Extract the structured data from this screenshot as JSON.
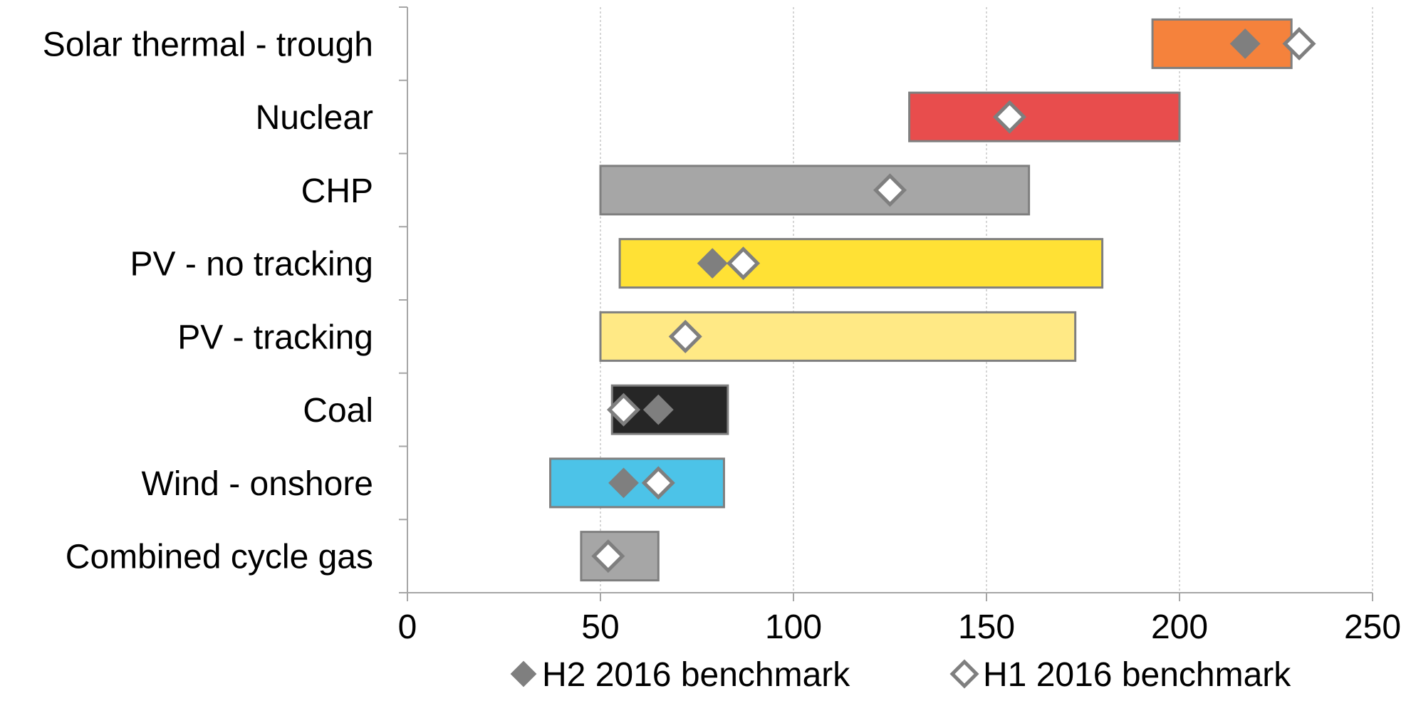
{
  "chart_data": {
    "type": "bar",
    "orientation": "horizontal-range",
    "title": "",
    "xlabel": "",
    "ylabel": "",
    "xlim": [
      0,
      250
    ],
    "x_ticks": [
      0,
      50,
      100,
      150,
      200,
      250
    ],
    "x_tick_labels": [
      "0",
      "50",
      "100",
      "150",
      "200",
      "250"
    ],
    "grid": "vertical dashed",
    "legend_position": "bottom",
    "categories": [
      "Solar thermal - trough",
      "Nuclear",
      "CHP",
      "PV - no tracking",
      "PV - tracking",
      "Coal",
      "Wind - onshore",
      "Combined cycle gas"
    ],
    "ranges": [
      {
        "category": "Solar thermal - trough",
        "low": 193,
        "high": 229,
        "color": "#F5823C"
      },
      {
        "category": "Nuclear",
        "low": 130,
        "high": 200,
        "color": "#E84D4D"
      },
      {
        "category": "CHP",
        "low": 50,
        "high": 161,
        "color": "#A6A6A6"
      },
      {
        "category": "PV - no tracking",
        "low": 55,
        "high": 180,
        "color": "#FFE135"
      },
      {
        "category": "PV - tracking",
        "low": 50,
        "high": 173,
        "color": "#FFE985"
      },
      {
        "category": "Coal",
        "low": 53,
        "high": 83,
        "color": "#262626"
      },
      {
        "category": "Wind - onshore",
        "low": 37,
        "high": 82,
        "color": "#4CC3E8"
      },
      {
        "category": "Combined cycle gas",
        "low": 45,
        "high": 65,
        "color": "#A6A6A6"
      }
    ],
    "series": [
      {
        "name": "H2 2016 benchmark",
        "marker": "filled-diamond",
        "color": "#7F7F7F",
        "values": [
          217,
          null,
          null,
          79,
          null,
          65,
          56,
          null
        ]
      },
      {
        "name": "H1 2016 benchmark",
        "marker": "hollow-diamond",
        "color": "#7F7F7F",
        "values": [
          231,
          156,
          125,
          87,
          72,
          56,
          65,
          52
        ]
      }
    ]
  }
}
